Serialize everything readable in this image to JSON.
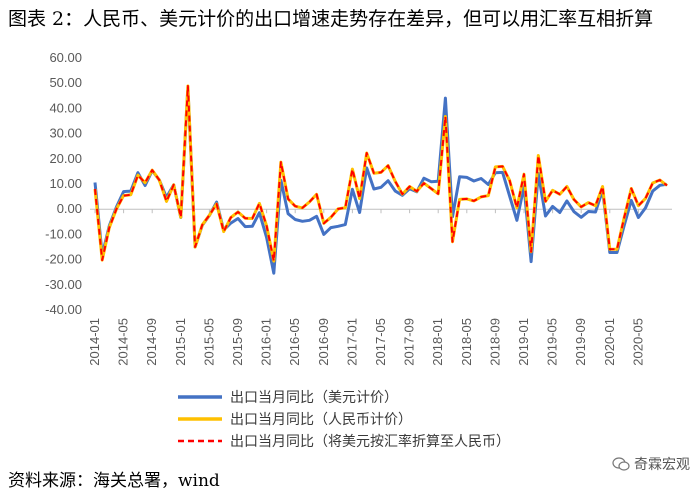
{
  "title": "图表 2：人民币、美元计价的出口增速走势存在差异，但可以用汇率互相折算",
  "source_label": "资料来源：海关总署，wind",
  "watermark": "奇霖宏观",
  "chart_data": {
    "type": "line",
    "title": "图表 2：人民币、美元计价的出口增速走势存在差异，但可以用汇率互相折算",
    "ylim": [
      -40,
      60
    ],
    "yticks": [
      "60.00",
      "50.00",
      "40.00",
      "30.00",
      "20.00",
      "10.00",
      "0.00",
      "-10.00",
      "-20.00",
      "-30.00",
      "-40.00"
    ],
    "xtick_labels": [
      "2014-01",
      "2014-05",
      "2014-09",
      "2015-01",
      "2015-05",
      "2015-09",
      "2016-01",
      "2016-05",
      "2016-09",
      "2017-01",
      "2017-05",
      "2017-09",
      "2018-01",
      "2018-05",
      "2018-09",
      "2019-01",
      "2019-05",
      "2019-09",
      "2020-01",
      "2020-05"
    ],
    "x_start": "2014-01",
    "x_end": "2020-09",
    "grid": false,
    "legend_position": "bottom",
    "series": [
      {
        "name": "出口当月同比（美元计价）",
        "color": "#4472C4",
        "style": "solid",
        "values": [
          10.6,
          -18.1,
          -6.6,
          0.9,
          7.0,
          7.2,
          14.5,
          9.4,
          15.3,
          11.6,
          4.7,
          9.7,
          -3.3,
          48.3,
          -15.0,
          -6.4,
          -2.5,
          2.8,
          -8.3,
          -5.5,
          -3.7,
          -6.9,
          -6.8,
          -1.4,
          -11.2,
          -25.4,
          11.5,
          -1.8,
          -4.1,
          -4.8,
          -4.4,
          -2.8,
          -10.0,
          -7.3,
          -6.8,
          -6.1,
          7.9,
          -1.3,
          16.4,
          8.0,
          8.7,
          11.3,
          7.2,
          5.5,
          8.1,
          6.9,
          12.3,
          10.9,
          11.1,
          44.1,
          -3.0,
          12.9,
          12.6,
          11.2,
          12.2,
          9.8,
          14.5,
          14.6,
          5.1,
          -4.4,
          9.1,
          -20.8,
          14.2,
          -2.7,
          1.1,
          -1.3,
          3.3,
          -1.0,
          -3.2,
          -0.9,
          -1.1,
          7.6,
          -17.2,
          -17.2,
          -6.6,
          3.5,
          -3.3,
          0.5,
          7.2,
          9.5,
          9.9
        ]
      },
      {
        "name": "出口当月同比（人民币计价）",
        "color": "#FFC000",
        "style": "solid",
        "values": [
          8.0,
          -20.2,
          -7.3,
          0.1,
          5.4,
          5.7,
          13.5,
          10.5,
          15.5,
          11.6,
          3.1,
          9.7,
          -3.2,
          48.9,
          -15.0,
          -6.2,
          -2.4,
          2.1,
          -8.9,
          -3.3,
          -1.1,
          -3.6,
          -3.7,
          2.3,
          -6.6,
          -20.6,
          18.7,
          4.1,
          1.2,
          0.5,
          2.9,
          5.9,
          -5.6,
          -3.2,
          0.1,
          0.6,
          15.9,
          4.2,
          22.3,
          14.3,
          14.6,
          17.3,
          11.0,
          6.0,
          9.0,
          7.1,
          10.3,
          8.2,
          6.1,
          36.8,
          -12.9,
          3.9,
          4.1,
          3.3,
          4.9,
          5.4,
          16.8,
          17.0,
          11.3,
          0.5,
          13.9,
          -16.9,
          21.3,
          3.1,
          7.5,
          5.9,
          9.0,
          3.8,
          0.9,
          2.6,
          1.4,
          9.0,
          -15.9,
          -15.9,
          -3.5,
          8.2,
          1.4,
          4.3,
          10.4,
          11.6,
          9.4
        ]
      },
      {
        "name": "出口当月同比（将美元按汇率折算至人民币）",
        "color": "#FF0000",
        "style": "dashed",
        "values": [
          8.0,
          -20.2,
          -7.3,
          0.1,
          5.4,
          5.7,
          13.5,
          10.5,
          15.5,
          11.6,
          3.1,
          9.7,
          -3.2,
          48.9,
          -15.0,
          -6.2,
          -2.4,
          2.1,
          -8.9,
          -3.3,
          -1.1,
          -3.6,
          -3.7,
          2.3,
          -6.6,
          -20.6,
          18.7,
          4.1,
          1.2,
          0.5,
          2.9,
          5.9,
          -5.6,
          -3.2,
          0.1,
          0.6,
          15.9,
          4.2,
          22.3,
          14.3,
          14.6,
          17.3,
          11.0,
          6.0,
          9.0,
          7.1,
          10.3,
          8.2,
          6.1,
          36.8,
          -12.9,
          3.9,
          4.1,
          3.3,
          4.9,
          5.4,
          16.8,
          17.0,
          11.3,
          0.5,
          13.9,
          -16.9,
          21.3,
          3.1,
          7.5,
          5.9,
          9.0,
          3.8,
          0.9,
          2.6,
          1.4,
          9.0,
          -15.9,
          -15.9,
          -3.5,
          8.2,
          1.4,
          4.3,
          10.4,
          11.6,
          9.4
        ]
      }
    ]
  }
}
